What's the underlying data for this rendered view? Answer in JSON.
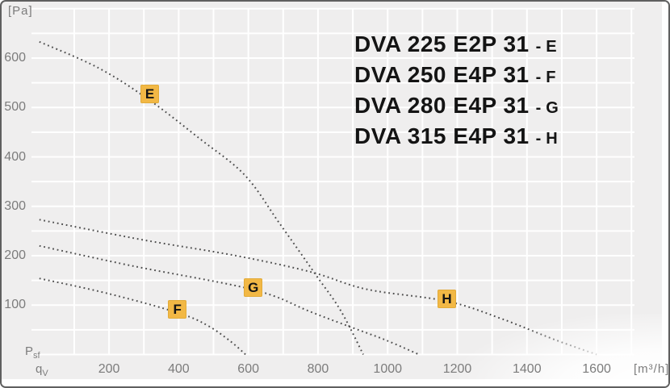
{
  "axes": {
    "y_unit_label": "[Pa]",
    "x_unit_label": "[m³/h]",
    "y_axis_symbol": "P",
    "y_axis_symbol_sub": "sf",
    "x_axis_symbol": "q",
    "x_axis_symbol_sub": "V",
    "y_ticks": [
      600,
      500,
      400,
      300,
      200,
      100
    ],
    "x_ticks": [
      200,
      400,
      600,
      800,
      1000,
      1200,
      1400,
      1600
    ]
  },
  "legend": {
    "lines": [
      {
        "model": "DVA 225 E2P 31",
        "sep": "-",
        "letter": "E"
      },
      {
        "model": "DVA 250 E4P 31",
        "sep": "-",
        "letter": "F"
      },
      {
        "model": "DVA 280 E4P 31",
        "sep": "-",
        "letter": "G"
      },
      {
        "model": "DVA 315 E4P 31",
        "sep": "-",
        "letter": "H"
      }
    ]
  },
  "curve_labels": [
    {
      "letter": "E",
      "q": 317,
      "p": 527
    },
    {
      "letter": "F",
      "q": 396,
      "p": 92
    },
    {
      "letter": "G",
      "q": 614,
      "p": 135
    },
    {
      "letter": "H",
      "q": 1170,
      "p": 113
    }
  ],
  "colors": {
    "accent_label_box": "#f2b845",
    "curve_dots": "#4d4d4d",
    "gridline": "#ffffff",
    "panel_background": "#efeeee",
    "muted_text": "#7c7c7c",
    "dark_text": "#141414",
    "frame_border": "#5f5f5f"
  },
  "chart_data": {
    "type": "line",
    "line_style": "dotted",
    "title": "",
    "xlabel": "qV [m³/h]",
    "ylabel": "Psf [Pa]",
    "x_range": [
      0,
      1800
    ],
    "y_range": [
      0,
      700
    ],
    "grid": true,
    "x_grid_step": 100,
    "y_grid_step": 50,
    "x_label_step": 200,
    "y_label_step": 100,
    "legend_position": "top-right",
    "series": [
      {
        "name": "DVA 225 E2P 31",
        "letter": "E",
        "points": [
          [
            0,
            633
          ],
          [
            170,
            580
          ],
          [
            316,
            515
          ],
          [
            460,
            437
          ],
          [
            590,
            363
          ],
          [
            690,
            265
          ],
          [
            795,
            160
          ],
          [
            865,
            89
          ],
          [
            930,
            0
          ]
        ]
      },
      {
        "name": "DVA 250 E4P 31",
        "letter": "F",
        "points": [
          [
            0,
            154
          ],
          [
            200,
            123
          ],
          [
            400,
            84
          ],
          [
            485,
            58
          ],
          [
            550,
            26
          ],
          [
            592,
            0
          ]
        ]
      },
      {
        "name": "DVA 280 E4P 31",
        "letter": "G",
        "points": [
          [
            0,
            220
          ],
          [
            270,
            179
          ],
          [
            560,
            140
          ],
          [
            675,
            118
          ],
          [
            770,
            89
          ],
          [
            885,
            58
          ],
          [
            995,
            29
          ],
          [
            1090,
            0
          ]
        ]
      },
      {
        "name": "DVA 315 E4P 31",
        "letter": "H",
        "points": [
          [
            0,
            273
          ],
          [
            290,
            233
          ],
          [
            565,
            200
          ],
          [
            780,
            167
          ],
          [
            940,
            132
          ],
          [
            1170,
            108
          ],
          [
            1325,
            73
          ],
          [
            1480,
            30
          ],
          [
            1600,
            0
          ]
        ]
      }
    ]
  }
}
